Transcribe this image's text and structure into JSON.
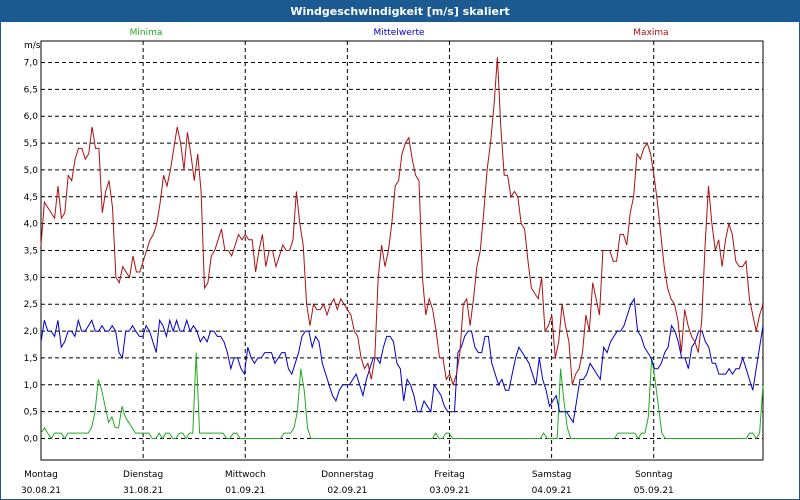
{
  "window": {
    "title": "Windgeschwindigkeit [m/s] skaliert"
  },
  "chart_data": {
    "type": "line",
    "title": "Windgeschwindigkeit [m/s] skaliert",
    "ylabel": "m/s",
    "ylim": [
      -0.4,
      7.4
    ],
    "yticks": [
      "0,0",
      "0,5",
      "1,0",
      "1,5",
      "2,0",
      "2,5",
      "3,0",
      "3,5",
      "4,0",
      "4,5",
      "5,0",
      "5,5",
      "6,0",
      "6,5",
      "7,0"
    ],
    "ytick_values": [
      0,
      0.5,
      1,
      1.5,
      2,
      2.5,
      3,
      3.5,
      4,
      4.5,
      5,
      5.5,
      6,
      6.5,
      7
    ],
    "xlim": [
      0,
      7
    ],
    "days": [
      {
        "day": "Montag",
        "date": "30.08.21"
      },
      {
        "day": "Dienstag",
        "date": "31.08.21"
      },
      {
        "day": "Mittwoch",
        "date": "01.09.21"
      },
      {
        "day": "Donnerstag",
        "date": "02.09.21"
      },
      {
        "day": "Freitag",
        "date": "03.09.21"
      },
      {
        "day": "Samstag",
        "date": "04.09.21"
      },
      {
        "day": "Sonntag",
        "date": "05.09.21"
      }
    ],
    "grid": true,
    "legend_position": "top",
    "series": [
      {
        "name": "Minima",
        "color": "#22aa22",
        "values": [
          0.1,
          0.2,
          0.1,
          0.0,
          0.1,
          0.1,
          0.1,
          0.0,
          0.1,
          0.1,
          0.1,
          0.1,
          0.1,
          0.1,
          0.1,
          0.2,
          0.5,
          1.1,
          0.9,
          0.6,
          0.3,
          0.4,
          0.2,
          0.2,
          0.6,
          0.4,
          0.3,
          0.2,
          0.1,
          0.1,
          0.1,
          0.1,
          0.1,
          0.0,
          0.0,
          0.1,
          0.0,
          0.1,
          0.1,
          0.0,
          0.0,
          0.1,
          0.1,
          0.0,
          0.1,
          0.1,
          1.6,
          0.1,
          0.1,
          0.1,
          0.1,
          0.1,
          0.1,
          0.1,
          0.1,
          0.0,
          0.0,
          0.1,
          0.1,
          0.0,
          0.0,
          0.0,
          0.0,
          0.0,
          0.0,
          0.0,
          0.0,
          0.0,
          0.0,
          0.0,
          0.0,
          0.0,
          0.1,
          0.1,
          0.1,
          0.2,
          0.5,
          1.3,
          0.9,
          0.2,
          0.0,
          0.0,
          0.0,
          0.0,
          0.0,
          0.0,
          0.0,
          0.0,
          0.0,
          0.0,
          0.0,
          0.0,
          0.0,
          0.0,
          0.0,
          0.0,
          0.0,
          0.0,
          0.0,
          0.0,
          0.0,
          0.0,
          0.0,
          0.0,
          0.0,
          0.0,
          0.0,
          0.0,
          0.0,
          0.0,
          0.0,
          0.0,
          0.0,
          0.0,
          0.0,
          0.0,
          0.0,
          0.1,
          0.0,
          0.0,
          0.1,
          0.1,
          0.0,
          0.0,
          0.0,
          0.0,
          0.0,
          0.0,
          0.0,
          0.0,
          0.0,
          0.0,
          0.0,
          0.0,
          0.0,
          0.0,
          0.0,
          0.0,
          0.0,
          0.0,
          0.0,
          0.0,
          0.0,
          0.0,
          0.0,
          0.0,
          0.0,
          0.0,
          0.0,
          0.1,
          0.0,
          0.0,
          0.0,
          0.0,
          1.3,
          0.7,
          0.2,
          0.0,
          0.0,
          0.0,
          0.0,
          0.0,
          0.0,
          0.0,
          0.0,
          0.0,
          0.0,
          0.0,
          0.0,
          0.0,
          0.0,
          0.1,
          0.1,
          0.1,
          0.1,
          0.1,
          0.1,
          0.0,
          0.1,
          0.1,
          0.4,
          1.5,
          1.1,
          0.6,
          0.1,
          0.0,
          0.0,
          0.0,
          0.0,
          0.0,
          0.0,
          0.0,
          0.0,
          0.0,
          0.0,
          0.0,
          0.0,
          0.0,
          0.0,
          0.0,
          0.0,
          0.0,
          0.0,
          0.0,
          0.0,
          0.0,
          0.0,
          0.0,
          0.0,
          0.0,
          0.1,
          0.1,
          0.0,
          0.1,
          1.0
        ]
      },
      {
        "name": "Mittelwerte",
        "color": "#0000cc",
        "values": [
          1.8,
          2.2,
          2.0,
          2.0,
          1.9,
          2.2,
          1.7,
          1.8,
          2.0,
          2.0,
          1.9,
          2.2,
          2.0,
          2.0,
          2.1,
          2.2,
          2.0,
          2.0,
          2.1,
          2.0,
          2.0,
          2.1,
          2.0,
          1.6,
          1.5,
          2.0,
          2.0,
          2.1,
          2.0,
          1.9,
          1.9,
          2.1,
          2.0,
          1.8,
          1.6,
          2.2,
          2.1,
          1.9,
          2.2,
          2.0,
          2.2,
          2.0,
          2.0,
          2.2,
          2.0,
          2.1,
          2.0,
          1.8,
          1.9,
          1.8,
          2.0,
          2.0,
          1.9,
          1.9,
          1.8,
          1.6,
          1.3,
          1.5,
          1.5,
          1.3,
          1.2,
          1.7,
          1.5,
          1.4,
          1.5,
          1.5,
          1.6,
          1.6,
          1.6,
          1.4,
          1.5,
          1.6,
          1.6,
          1.3,
          1.2,
          1.4,
          1.6,
          1.9,
          2.0,
          2.0,
          1.7,
          1.9,
          1.8,
          1.4,
          1.2,
          1.0,
          0.8,
          0.7,
          0.9,
          1.0,
          1.0,
          1.0,
          1.1,
          1.2,
          1.0,
          0.8,
          1.1,
          1.3,
          1.5,
          1.5,
          1.4,
          1.7,
          1.9,
          1.9,
          1.8,
          1.4,
          1.3,
          0.7,
          1.1,
          1.0,
          0.8,
          0.5,
          0.5,
          0.7,
          0.6,
          0.5,
          1.0,
          0.9,
          0.8,
          0.6,
          0.5,
          0.5,
          0.5,
          1.6,
          1.7,
          1.9,
          2.0,
          2.0,
          1.7,
          1.6,
          1.6,
          1.9,
          1.9,
          1.4,
          1.2,
          1.0,
          1.1,
          0.9,
          0.9,
          1.2,
          1.5,
          1.7,
          1.6,
          1.5,
          1.4,
          1.2,
          1.0,
          1.5,
          1.1,
          0.9,
          0.6,
          0.7,
          0.8,
          0.5,
          0.5,
          0.5,
          0.4,
          0.3,
          0.7,
          1.1,
          1.1,
          1.2,
          1.4,
          1.3,
          1.2,
          1.1,
          1.7,
          1.6,
          1.8,
          1.9,
          2.0,
          2.0,
          2.1,
          2.3,
          2.5,
          2.6,
          2.0,
          1.9,
          1.7,
          1.6,
          1.5,
          1.3,
          1.3,
          1.4,
          1.6,
          1.7,
          2.1,
          2.0,
          1.8,
          1.5,
          1.5,
          1.3,
          1.7,
          1.8,
          2.0,
          2.0,
          1.8,
          1.7,
          1.4,
          1.4,
          1.2,
          1.2,
          1.2,
          1.3,
          1.2,
          1.3,
          1.3,
          1.5,
          1.3,
          1.1,
          0.9,
          1.3,
          1.7,
          2.1
        ]
      },
      {
        "name": "Maxima",
        "color": "#aa1111",
        "values": [
          3.6,
          4.4,
          4.3,
          4.2,
          4.1,
          4.7,
          4.1,
          4.2,
          4.9,
          4.8,
          5.2,
          5.4,
          5.4,
          5.2,
          5.3,
          5.8,
          5.4,
          5.4,
          4.2,
          4.6,
          4.8,
          4.3,
          3.0,
          2.9,
          3.2,
          3.1,
          3.0,
          3.4,
          3.1,
          3.1,
          3.3,
          3.5,
          3.7,
          3.8,
          4.0,
          4.4,
          4.9,
          4.7,
          5.0,
          5.4,
          5.8,
          5.5,
          5.0,
          5.7,
          5.3,
          4.8,
          5.3,
          4.6,
          2.8,
          2.9,
          3.4,
          3.5,
          3.7,
          3.9,
          3.5,
          3.5,
          3.4,
          3.6,
          3.8,
          3.7,
          3.8,
          3.7,
          3.7,
          3.1,
          3.5,
          3.8,
          3.2,
          3.5,
          3.5,
          3.2,
          3.4,
          3.6,
          3.5,
          3.5,
          3.7,
          4.6,
          4.0,
          3.6,
          2.5,
          2.1,
          2.5,
          2.4,
          2.4,
          2.5,
          2.3,
          2.5,
          2.6,
          2.4,
          2.6,
          2.5,
          2.4,
          2.3,
          2.0,
          1.9,
          1.5,
          1.3,
          1.4,
          1.1,
          1.5,
          3.0,
          3.6,
          3.2,
          3.5,
          4.0,
          4.7,
          4.8,
          5.3,
          5.5,
          5.6,
          5.2,
          4.9,
          4.8,
          3.0,
          2.3,
          2.6,
          2.4,
          2.0,
          1.5,
          1.5,
          1.1,
          1.2,
          1.0,
          1.2,
          1.6,
          2.5,
          2.6,
          2.1,
          2.6,
          3.2,
          3.5,
          4.2,
          5.0,
          5.5,
          6.2,
          7.1,
          5.8,
          4.9,
          4.9,
          4.5,
          4.6,
          4.5,
          4.0,
          3.9,
          3.3,
          2.8,
          2.7,
          2.6,
          3.0,
          2.0,
          2.1,
          2.3,
          1.5,
          1.8,
          2.5,
          2.1,
          1.8,
          1.0,
          1.2,
          1.3,
          1.6,
          2.3,
          2.0,
          2.9,
          2.6,
          2.3,
          3.5,
          3.5,
          3.5,
          3.3,
          3.3,
          3.8,
          3.8,
          3.6,
          4.2,
          4.5,
          5.3,
          5.2,
          5.4,
          5.5,
          5.3,
          4.9,
          4.4,
          3.8,
          3.2,
          2.8,
          2.6,
          2.5,
          2.2,
          1.6,
          2.4,
          2.1,
          1.9,
          1.8,
          1.6,
          2.2,
          3.6,
          4.7,
          4.0,
          3.5,
          3.7,
          3.2,
          3.7,
          4.0,
          3.8,
          3.3,
          3.2,
          3.2,
          3.3,
          2.6,
          2.3,
          2.0,
          2.3,
          2.5
        ]
      }
    ]
  }
}
